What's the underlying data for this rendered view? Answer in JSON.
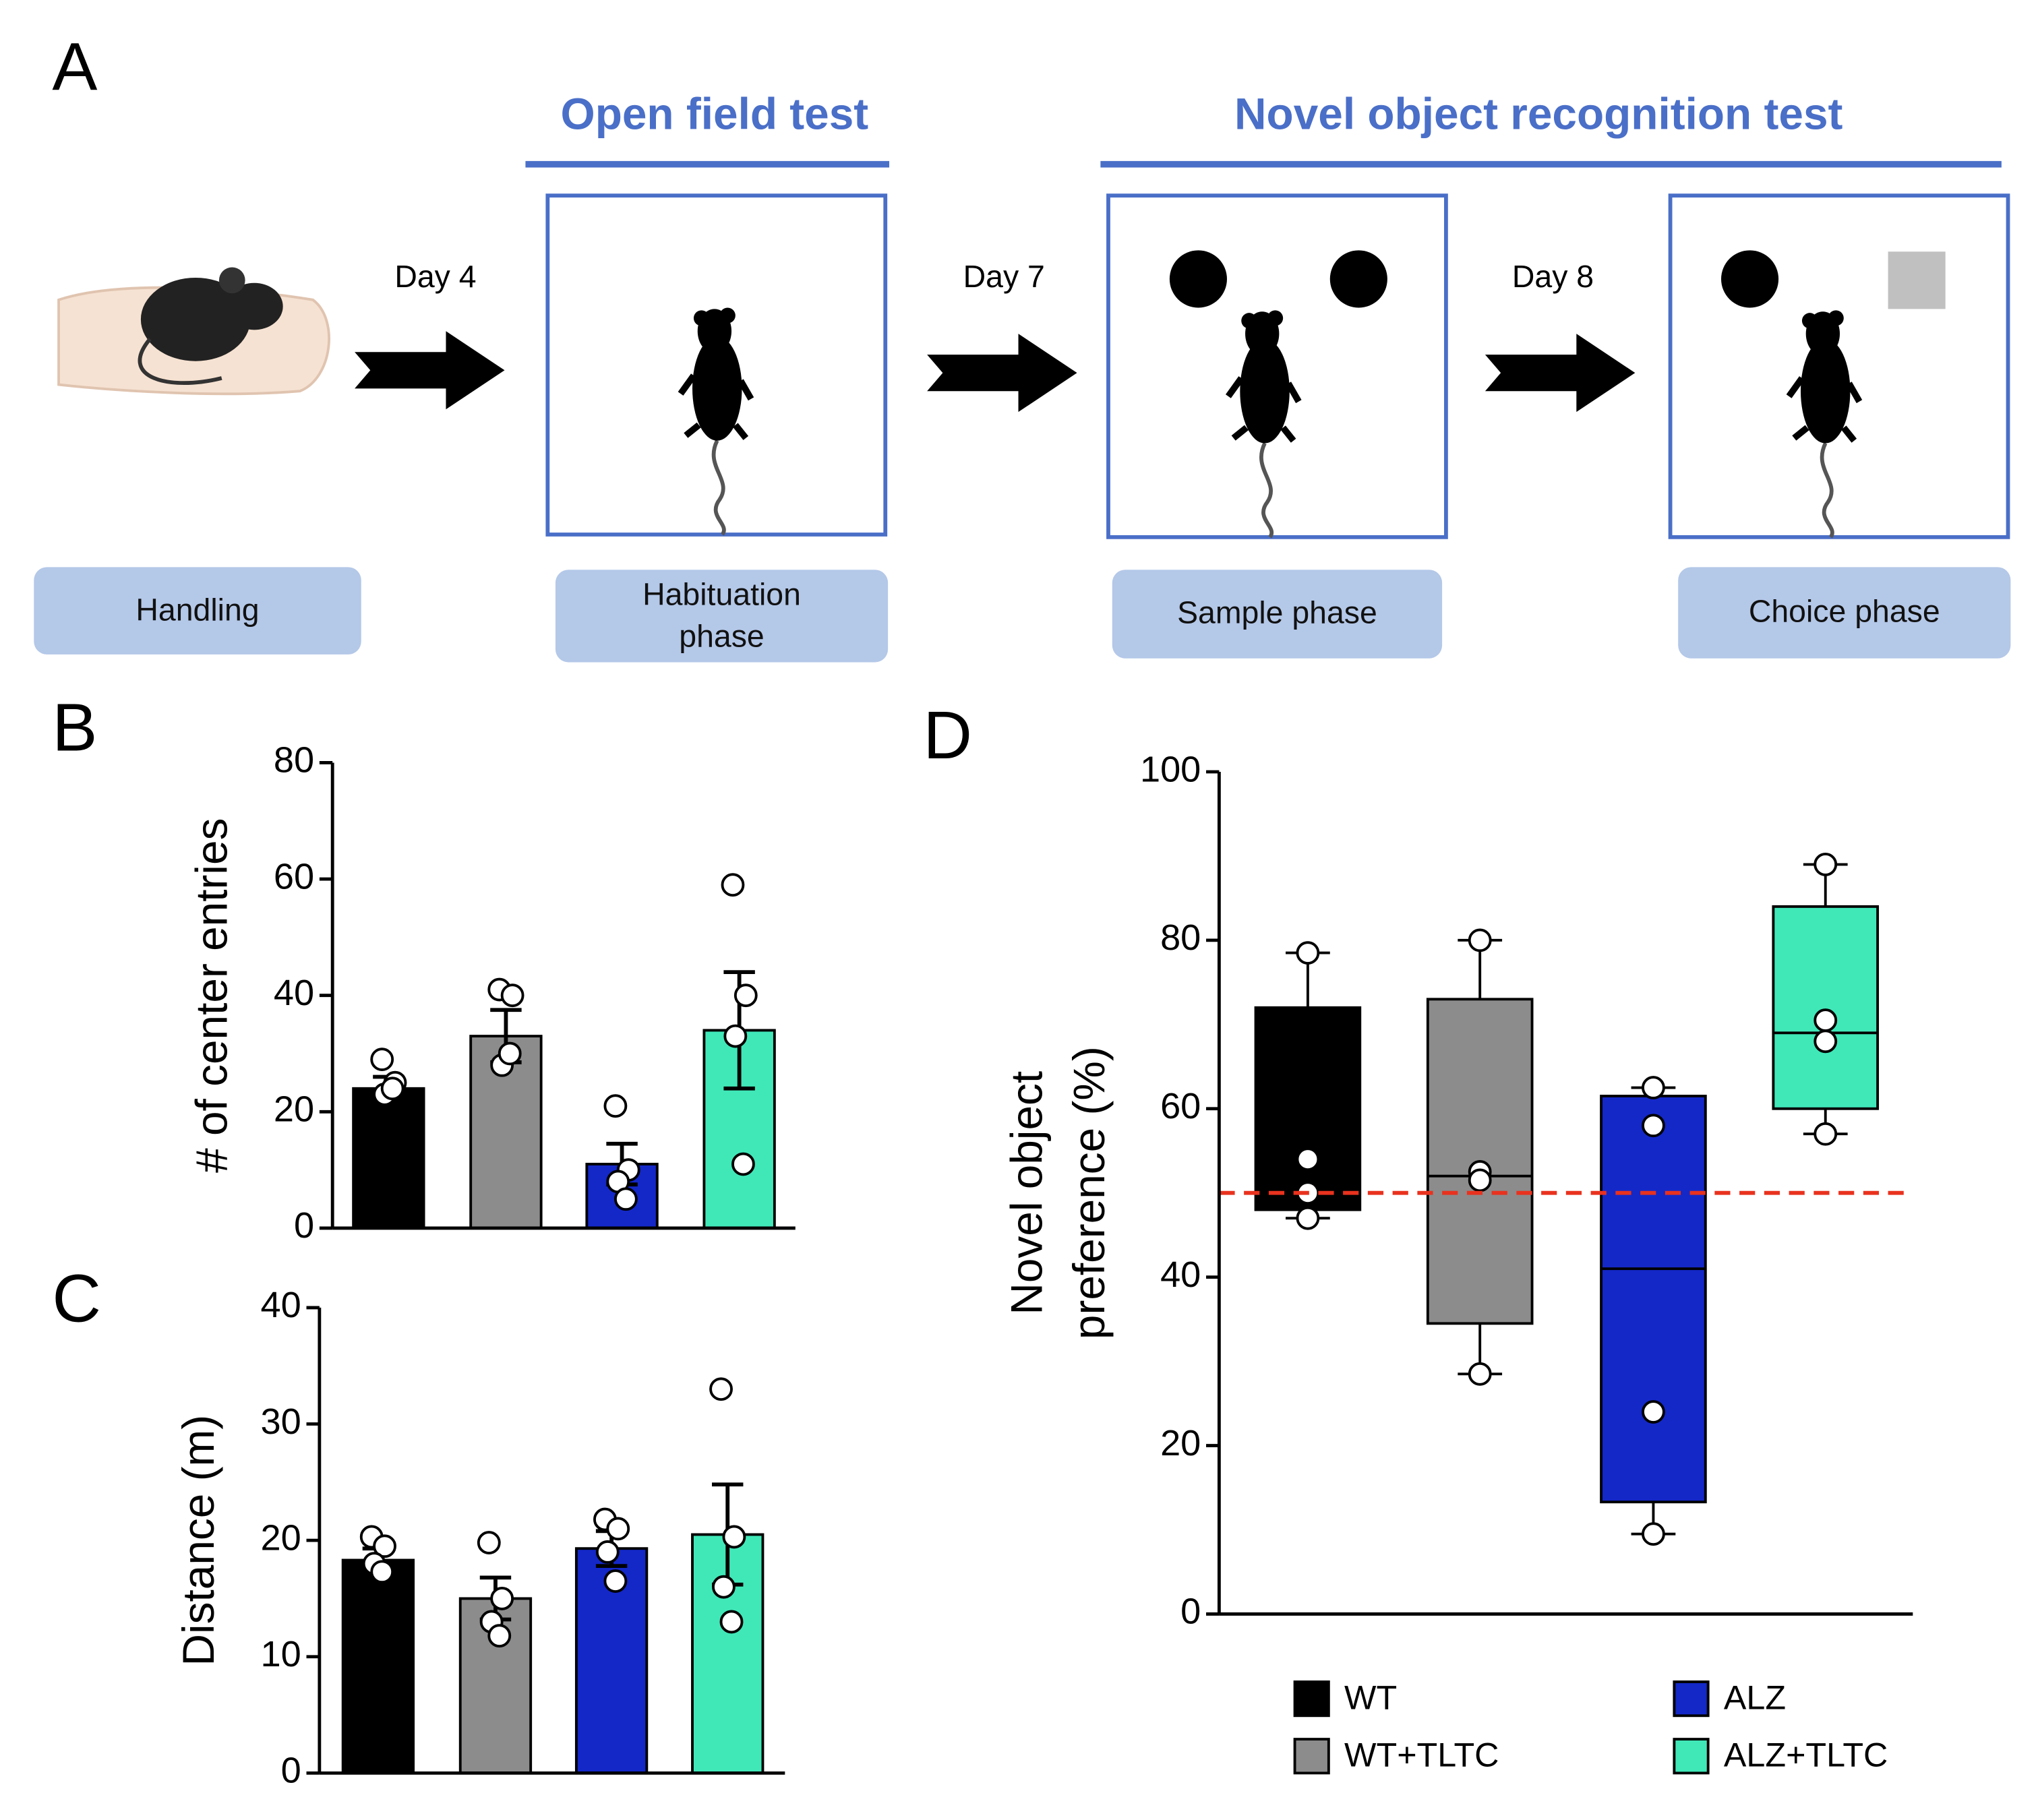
{
  "panel_labels": [
    "A",
    "B",
    "C",
    "D"
  ],
  "diagram": {
    "headers": [
      "Open field test",
      "Novel object recognition test"
    ],
    "days": [
      "Day 4",
      "Day 7",
      "Day 8"
    ],
    "phases": [
      "Handling",
      "Habituation phase",
      "Sample phase",
      "Choice phase"
    ]
  },
  "chart_data": [
    {
      "type": "bar",
      "ylabel": "# of center entries",
      "values": [
        24,
        33,
        11,
        34
      ],
      "errors": [
        2,
        4.5,
        3.5,
        10
      ],
      "points": [
        [
          29,
          25,
          23,
          24
        ],
        [
          41,
          40,
          28,
          30
        ],
        [
          21,
          10,
          8,
          5
        ],
        [
          59,
          40,
          33,
          11
        ]
      ],
      "colors": [
        "#000000",
        "#8c8c8c",
        "#1428c8",
        "#40e8b8"
      ],
      "ylim": [
        0,
        80
      ],
      "yticks": [
        0,
        20,
        40,
        60,
        80
      ]
    },
    {
      "type": "bar",
      "ylabel": "Distance (m)",
      "values": [
        18.3,
        15,
        19.3,
        20.5
      ],
      "errors": [
        1,
        1.8,
        1.5,
        4.3
      ],
      "points": [
        [
          20.3,
          19.5,
          18,
          17.3
        ],
        [
          19.8,
          15,
          13,
          11.8
        ],
        [
          21.8,
          21,
          19,
          16.5
        ],
        [
          33,
          20.3,
          16,
          13
        ]
      ],
      "colors": [
        "#000000",
        "#8c8c8c",
        "#1428c8",
        "#40e8b8"
      ],
      "ylim": [
        0,
        40
      ],
      "yticks": [
        0,
        10,
        20,
        30,
        40
      ]
    },
    {
      "type": "box",
      "ylabel": [
        "Novel object",
        "preference (%)"
      ],
      "series": [
        {
          "name": "WT",
          "color": "#000000",
          "min": 47,
          "q1": 48,
          "median": 52,
          "q3": 72,
          "max": 78.5,
          "points": [
            78.5,
            54,
            50,
            47
          ]
        },
        {
          "name": "WT+TLTC",
          "color": "#8c8c8c",
          "min": 28.5,
          "q1": 34.5,
          "median": 52,
          "q3": 73,
          "max": 80,
          "points": [
            80,
            52.5,
            51.5,
            28.5
          ]
        },
        {
          "name": "ALZ",
          "color": "#1428c8",
          "min": 9.5,
          "q1": 13.3,
          "median": 41,
          "q3": 61.5,
          "max": 62.5,
          "points": [
            62.5,
            58,
            24,
            9.5
          ]
        },
        {
          "name": "ALZ+TLTC",
          "color": "#40e8b8",
          "min": 57,
          "q1": 60,
          "median": 69,
          "q3": 84,
          "max": 89,
          "points": [
            89,
            70.5,
            68,
            57
          ]
        }
      ],
      "reference_line": 50,
      "reference_color": "#e8321e",
      "ylim": [
        0,
        100
      ],
      "yticks": [
        0,
        20,
        40,
        60,
        80,
        100
      ]
    }
  ]
}
